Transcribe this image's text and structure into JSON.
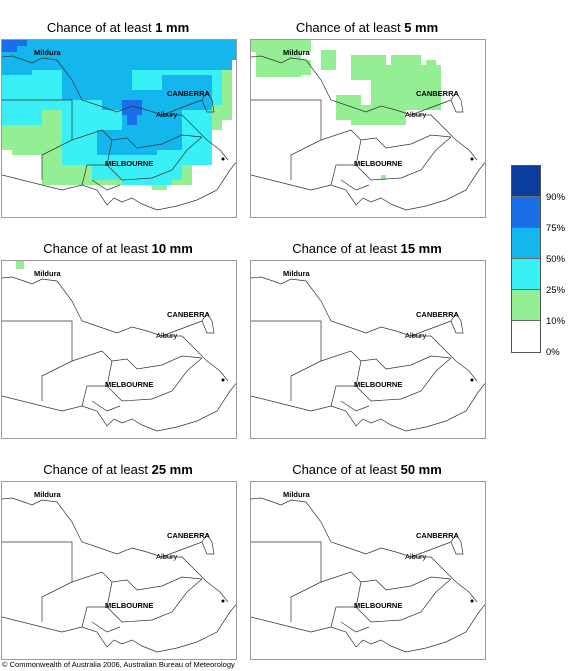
{
  "panels": [
    {
      "prefix": "Chance of at least ",
      "amount": "1 mm"
    },
    {
      "prefix": "Chance of at least ",
      "amount": "5 mm"
    },
    {
      "prefix": "Chance of at least ",
      "amount": "10 mm"
    },
    {
      "prefix": "Chance of at least ",
      "amount": "15 mm"
    },
    {
      "prefix": "Chance of at least ",
      "amount": "25 mm"
    },
    {
      "prefix": "Chance of at least ",
      "amount": "50 mm"
    }
  ],
  "places": {
    "mildura": "Mildura",
    "canberra": "CANBERRA",
    "albury": "Albury",
    "melbourne": "MELBOURNE"
  },
  "legend": {
    "labels": [
      "90%",
      "75%",
      "50%",
      "25%",
      "10%",
      "0%"
    ],
    "colors": [
      "#0a3d9c",
      "#1a6ee8",
      "#14b6ee",
      "#38f0f6",
      "#94ef94",
      "#ffffff"
    ]
  },
  "copyright": "© Commonwealth of Australia 2006, Australian Bureau of Meteorology"
}
